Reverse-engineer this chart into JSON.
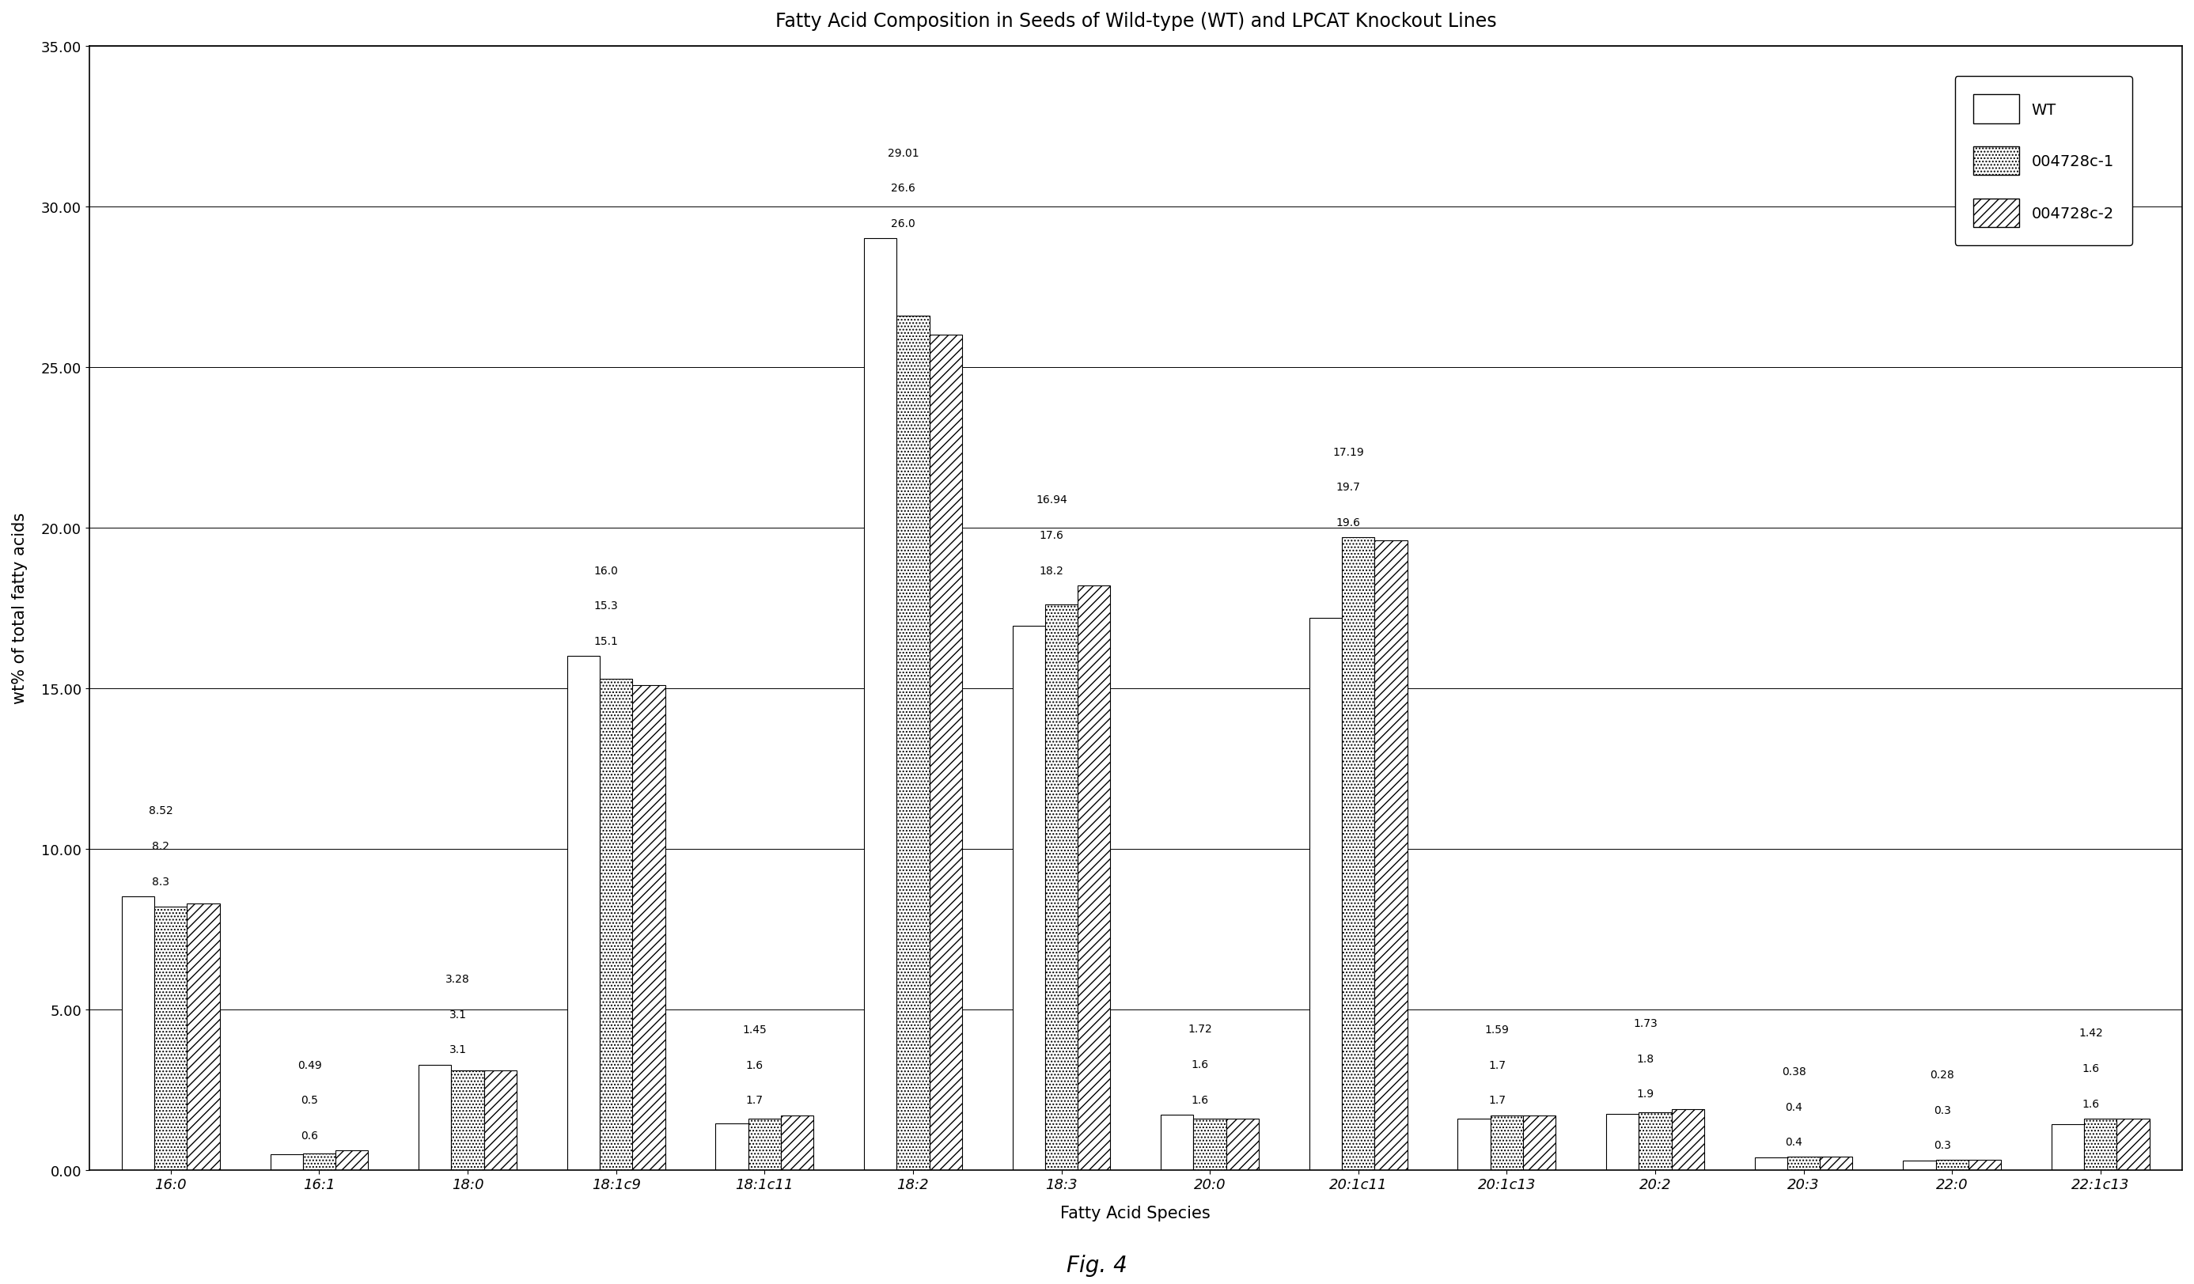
{
  "title": "Fatty Acid Composition in Seeds of Wild-type (WT) and LPCAT Knockout Lines",
  "xlabel": "Fatty Acid Species",
  "ylabel": "wt% of total fatty acids",
  "fig_caption": "Fig. 4",
  "categories": [
    "16:0",
    "16:1",
    "18:0",
    "18:1c9",
    "18:1c11",
    "18:2",
    "18:3",
    "20:0",
    "20:1c11",
    "20:1c13",
    "20:2",
    "20:3",
    "22:0",
    "22:1c13"
  ],
  "series": {
    "WT": [
      8.52,
      0.49,
      3.28,
      16.0,
      1.45,
      29.01,
      16.94,
      1.72,
      17.19,
      1.59,
      1.73,
      0.38,
      0.28,
      1.42
    ],
    "004728c-1": [
      8.2,
      0.5,
      3.1,
      15.3,
      1.6,
      26.6,
      17.6,
      1.6,
      19.7,
      1.7,
      1.8,
      0.4,
      0.3,
      1.6
    ],
    "004728c-2": [
      8.3,
      0.6,
      3.1,
      15.1,
      1.7,
      26.0,
      18.2,
      1.6,
      19.6,
      1.7,
      1.9,
      0.4,
      0.3,
      1.6
    ]
  },
  "ylim": [
    0,
    35.0
  ],
  "yticks": [
    0.0,
    5.0,
    10.0,
    15.0,
    20.0,
    25.0,
    30.0,
    35.0
  ],
  "background_color": "#ffffff",
  "bar_width": 0.22,
  "title_fontsize": 17,
  "axis_label_fontsize": 15,
  "tick_fontsize": 13,
  "annotation_fontsize": 10,
  "legend_fontsize": 14
}
